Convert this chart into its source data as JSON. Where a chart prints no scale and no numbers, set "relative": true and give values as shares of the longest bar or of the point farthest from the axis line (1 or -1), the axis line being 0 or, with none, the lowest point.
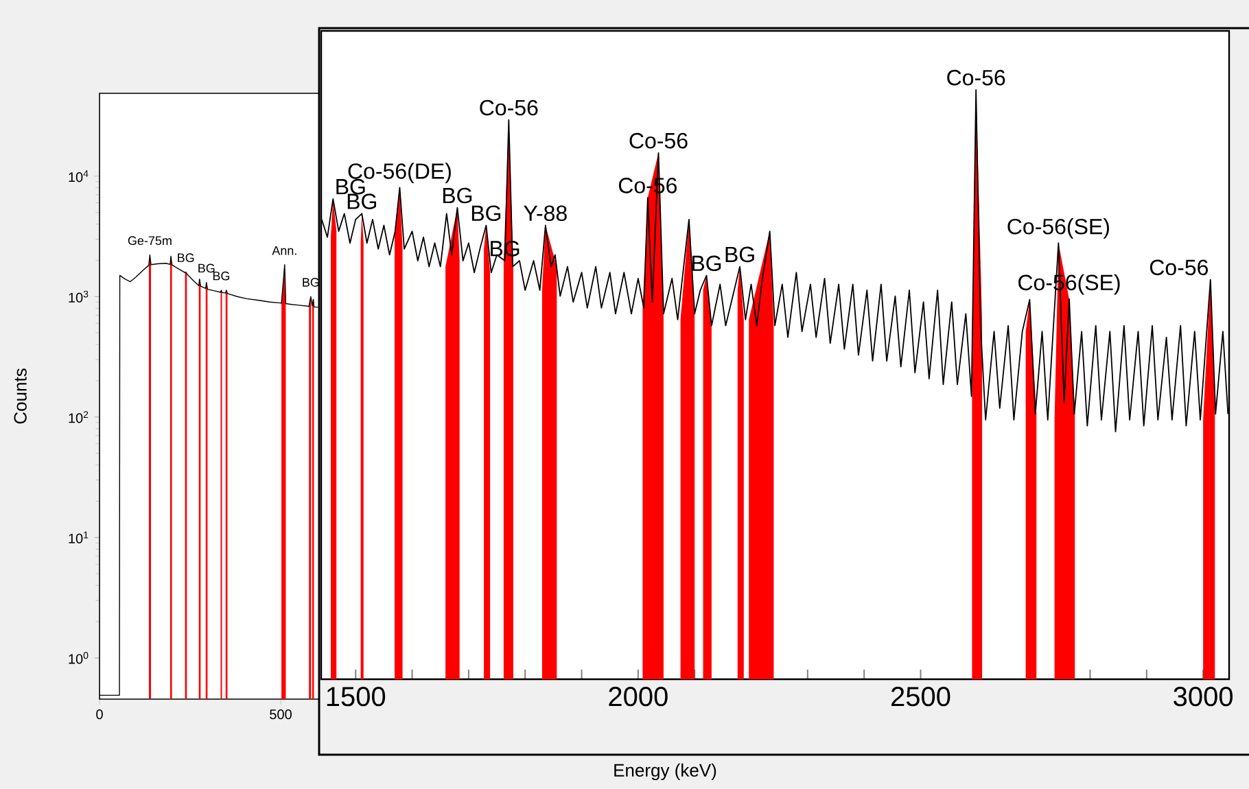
{
  "chart_data": [
    {
      "type": "line",
      "xlabel": "Energy (keV)",
      "ylabel": "Counts",
      "log": "y",
      "xlim": [
        0,
        3121
      ],
      "ylim": [
        0.455,
        48700
      ],
      "xticks": [
        0,
        500
      ],
      "yticks": [
        {
          "value": 1,
          "label": "10$^{0}$"
        },
        {
          "value": 10,
          "label": "10$^{1}$"
        },
        {
          "value": 100,
          "label": "10$^{2}$"
        },
        {
          "value": 1000,
          "label": "10$^{3}$"
        },
        {
          "value": 10000,
          "label": "10$^{4}$"
        }
      ],
      "series": [
        {
          "color": "#000000",
          "x": [
            0,
            55,
            56,
            70,
            85,
            100,
            120,
            136,
            139,
            142,
            160,
            183,
            195,
            197,
            200,
            218,
            236,
            238,
            241,
            260,
            274,
            276,
            279,
            293,
            295,
            298,
            315,
            334,
            336,
            338,
            348,
            350,
            353,
            380,
            406,
            440,
            470,
            500,
            502,
            511,
            514,
            530,
            547,
            578,
            583,
            587,
            590,
            592,
            603
          ],
          "values": [
            0.49,
            0.49,
            1500,
            1400,
            1330,
            1450,
            1650,
            1820,
            2220,
            1840,
            1870,
            1890,
            1850,
            2160,
            1830,
            1700,
            1580,
            1600,
            1540,
            1350,
            1230,
            1400,
            1220,
            1170,
            1310,
            1150,
            1120,
            1085,
            1130,
            1080,
            1070,
            1130,
            1060,
            1000,
            960,
            930,
            900,
            885,
            880,
            1840,
            875,
            860,
            850,
            830,
            1000,
            840,
            950,
            820,
            815
          ]
        },
        {
          "type": "area",
          "color": "#ff0000",
          "x": [
            136,
            139,
            142,
            143,
            195,
            197,
            200,
            201,
            236,
            238,
            241,
            242,
            274,
            276,
            279,
            280,
            293,
            295,
            298,
            299,
            334,
            336,
            338,
            339,
            348,
            350,
            353,
            354,
            502,
            511,
            514,
            515,
            578,
            583,
            584,
            585,
            587,
            590,
            592
          ],
          "values": [
            1820,
            2220,
            1840,
            null,
            1850,
            2160,
            1830,
            null,
            1580,
            1600,
            1540,
            null,
            1230,
            1400,
            1220,
            null,
            1170,
            1310,
            1150,
            null,
            1085,
            1130,
            1080,
            null,
            1070,
            1130,
            1060,
            null,
            880,
            1840,
            875,
            null,
            830,
            1000,
            900,
            null,
            840,
            950,
            820
          ]
        }
      ],
      "annotations": [
        {
          "text": "Ge-75m",
          "x": 139,
          "y": 2220
        },
        {
          "text": "BG",
          "x": 238,
          "y": 1600
        },
        {
          "text": "BG",
          "x": 295,
          "y": 1310
        },
        {
          "text": "BG",
          "x": 336,
          "y": 1130
        },
        {
          "text": "Ann.",
          "x": 511,
          "y": 1840
        },
        {
          "text": "BG",
          "x": 583,
          "y": 1000
        }
      ]
    },
    {
      "type": "line",
      "relative": true,
      "tick_labels": "x",
      "xlim": [
        1439,
        3046
      ],
      "xticks": [
        1500,
        {
          "value": 1600,
          "label": null
        },
        {
          "value": 1700,
          "label": null
        },
        {
          "value": 1800,
          "label": null
        },
        {
          "value": 1900,
          "label": null
        },
        2000,
        {
          "value": 2100,
          "label": null
        },
        {
          "value": 2200,
          "label": null
        },
        {
          "value": 2300,
          "label": null
        },
        {
          "value": 2400,
          "label": null
        },
        2500,
        {
          "value": 2600,
          "label": null
        },
        {
          "value": 2700,
          "label": null
        },
        {
          "value": 2800,
          "label": null
        },
        {
          "value": 2900,
          "label": null
        },
        3000
      ],
      "series": [
        {
          "color": "#000000",
          "x": [
            1440,
            1450,
            1460,
            1470,
            1480,
            1490,
            1500,
            1511,
            1520,
            1530,
            1540,
            1550,
            1560,
            1570,
            1578,
            1586,
            1600,
            1610,
            1620,
            1630,
            1640,
            1650,
            1661,
            1670,
            1680,
            1690,
            1700,
            1710,
            1720,
            1731,
            1740,
            1750,
            1764,
            1771,
            1778,
            1790,
            1800,
            1815,
            1826,
            1836,
            1846,
            1853,
            1862,
            1875,
            1885,
            1900,
            1910,
            1925,
            1935,
            1950,
            1960,
            1975,
            1988,
            2000,
            2010,
            2017,
            2025,
            2036,
            2045,
            2060,
            2070,
            2090,
            2100,
            2110,
            2121,
            2130,
            2145,
            2155,
            2170,
            2180,
            2190,
            2200,
            2210,
            2220,
            2233,
            2242,
            2255,
            2265,
            2280,
            2290,
            2305,
            2315,
            2330,
            2340,
            2355,
            2365,
            2380,
            2390,
            2405,
            2415,
            2430,
            2440,
            2455,
            2465,
            2480,
            2490,
            2505,
            2515,
            2530,
            2540,
            2555,
            2565,
            2580,
            2590,
            2598,
            2606,
            2615,
            2630,
            2640,
            2655,
            2665,
            2680,
            2693,
            2703,
            2715,
            2725,
            2744,
            2754,
            2763,
            2772,
            2785,
            2795,
            2810,
            2820,
            2835,
            2845,
            2860,
            2870,
            2885,
            2895,
            2910,
            2920,
            2935,
            2945,
            2960,
            2970,
            2985,
            2995,
            3013,
            3022,
            3035,
            3044
          ],
          "values": [
            0.78,
            0.75,
            0.815,
            0.76,
            0.79,
            0.74,
            0.78,
            0.79,
            0.74,
            0.78,
            0.73,
            0.77,
            0.72,
            0.76,
            0.834,
            0.73,
            0.76,
            0.71,
            0.75,
            0.7,
            0.74,
            0.7,
            0.79,
            0.72,
            0.8,
            0.71,
            0.74,
            0.69,
            0.73,
            0.77,
            0.69,
            0.72,
            0.71,
            0.949,
            0.7,
            0.71,
            0.66,
            0.71,
            0.66,
            0.77,
            0.7,
            0.72,
            0.65,
            0.7,
            0.64,
            0.69,
            0.63,
            0.7,
            0.63,
            0.69,
            0.62,
            0.69,
            0.62,
            0.68,
            0.63,
            0.817,
            0.64,
            0.893,
            0.62,
            0.68,
            0.61,
            0.78,
            0.62,
            0.66,
            0.685,
            0.6,
            0.67,
            0.6,
            0.66,
            0.7,
            0.61,
            0.67,
            0.6,
            0.68,
            0.76,
            0.6,
            0.67,
            0.58,
            0.69,
            0.59,
            0.67,
            0.58,
            0.68,
            0.57,
            0.67,
            0.56,
            0.67,
            0.55,
            0.66,
            0.54,
            0.67,
            0.54,
            0.65,
            0.53,
            0.66,
            0.52,
            0.64,
            0.51,
            0.66,
            0.5,
            0.64,
            0.5,
            0.62,
            0.48,
            1.0,
            0.6,
            0.44,
            0.59,
            0.46,
            0.6,
            0.44,
            0.59,
            0.644,
            0.45,
            0.59,
            0.44,
            0.74,
            0.47,
            0.645,
            0.45,
            0.59,
            0.43,
            0.6,
            0.44,
            0.59,
            0.42,
            0.6,
            0.44,
            0.59,
            0.43,
            0.6,
            0.44,
            0.58,
            0.44,
            0.6,
            0.43,
            0.59,
            0.44,
            0.678,
            0.45,
            0.59,
            0.45
          ]
        },
        {
          "type": "area",
          "color": "#ff0000",
          "x": [
            1456,
            1460,
            1466,
            1467,
            1509,
            1511,
            1514,
            1515,
            1569,
            1578,
            1583,
            1584,
            1659,
            1680,
            1684,
            1685,
            1727,
            1731,
            1738,
            1739,
            1762,
            1771,
            1779,
            1780,
            1830,
            1836,
            1856,
            1857,
            2008,
            2017,
            2036,
            2045,
            2046,
            2075,
            2090,
            2100,
            2101,
            2115,
            2121,
            2130,
            2131,
            2176,
            2180,
            2187,
            2188,
            2196,
            2233,
            2240,
            2241,
            2591,
            2598,
            2609,
            2610,
            2686,
            2693,
            2705,
            2706,
            2737,
            2744,
            2763,
            2773,
            2774,
            3000,
            3013,
            3021
          ],
          "values": [
            0.75,
            0.815,
            0.76,
            null,
            0.74,
            0.79,
            0.74,
            null,
            0.76,
            0.834,
            0.73,
            null,
            0.7,
            0.8,
            0.71,
            null,
            0.73,
            0.77,
            0.69,
            null,
            0.71,
            0.949,
            0.7,
            null,
            0.66,
            0.77,
            0.7,
            null,
            0.63,
            0.817,
            0.893,
            0.62,
            null,
            0.61,
            0.78,
            0.62,
            null,
            0.66,
            0.685,
            0.6,
            null,
            0.66,
            0.7,
            0.61,
            null,
            0.61,
            0.76,
            0.6,
            null,
            0.48,
            1.0,
            0.6,
            null,
            0.59,
            0.644,
            0.45,
            null,
            0.44,
            0.74,
            0.645,
            0.45,
            null,
            0.44,
            0.678,
            0.45
          ]
        }
      ],
      "annotations": [
        {
          "text": "BG",
          "x": 1460,
          "y": 0.815
        },
        {
          "text": "BG",
          "x": 1511,
          "y": 0.79
        },
        {
          "text": "Co-56(DE)",
          "x": 1578,
          "y": 0.834
        },
        {
          "text": "BG",
          "x": 1680,
          "y": 0.8
        },
        {
          "text": "BG",
          "x": 1731,
          "y": 0.77
        },
        {
          "text": "BG",
          "x": 1764,
          "y": 0.71
        },
        {
          "text": "Co-56",
          "x": 1771,
          "y": 0.949
        },
        {
          "text": "Y-88",
          "x": 1836,
          "y": 0.77
        },
        {
          "text": "Co-56",
          "x": 2017,
          "y": 0.817
        },
        {
          "text": "Co-56",
          "x": 2036,
          "y": 0.893
        },
        {
          "text": "BG",
          "x": 2121,
          "y": 0.685
        },
        {
          "text": "BG",
          "x": 2180,
          "y": 0.7
        },
        {
          "text": "Co-56",
          "x": 2598,
          "y": 1.0
        },
        {
          "text": "Co-56(SE)",
          "x": 2744,
          "y": 0.74
        },
        {
          "text": "Co-56(SE)",
          "x": 2763,
          "y": 0.645
        },
        {
          "text": "Co-56",
          "x": 3013,
          "y": 0.678
        }
      ]
    }
  ]
}
